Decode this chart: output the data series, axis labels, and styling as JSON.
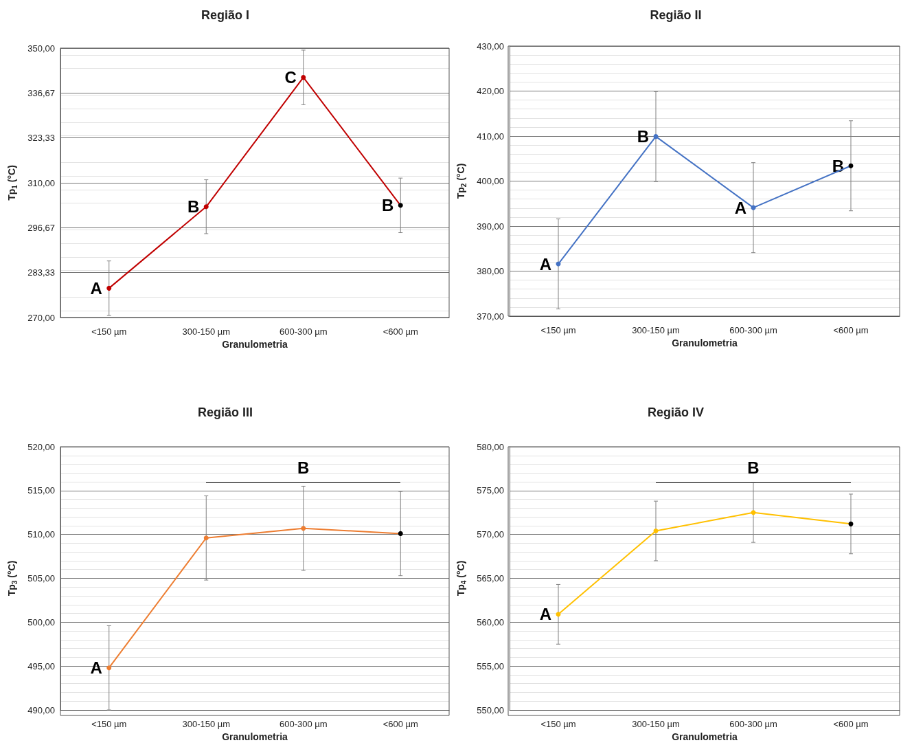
{
  "chart_data": [
    {
      "type": "line",
      "title": "Região I",
      "xlabel": "Granulometria",
      "ylabel": "Tp$_{1}$ (°C)",
      "categories": [
        "<150 µm",
        "300-150 µm",
        "600-300 µm",
        "<600 µm"
      ],
      "series": [
        {
          "color": "#c00000",
          "colors": [
            "#c00000",
            "#c00000",
            "#c00000",
            "#000000"
          ],
          "values": [
            278.7,
            302.9,
            341.3,
            303.3
          ],
          "errors": [
            8.1,
            8.0,
            8.1,
            8.1
          ]
        }
      ],
      "ylim": [
        270,
        350
      ],
      "yticks": [
        {
          "value": 270,
          "label": "270,00"
        },
        {
          "value": 283.33,
          "label": "283,33"
        },
        {
          "value": 296.67,
          "label": "296,67"
        },
        {
          "value": 310,
          "label": "310,00"
        },
        {
          "value": 323.33,
          "label": "323,33"
        },
        {
          "value": 336.67,
          "label": "336,67"
        },
        {
          "value": 350,
          "label": "350,00"
        }
      ],
      "grid": true,
      "marker": "circle",
      "line_style": "solid",
      "annotations": [
        {
          "text": "A",
          "x": "<150 µm",
          "y": 278.7
        },
        {
          "text": "B",
          "x": "300-150 µm",
          "y": 302.9
        },
        {
          "text": "C",
          "x": "600-300 µm",
          "y": 341.3
        },
        {
          "text": "B",
          "x": "<600 µm",
          "y": 303.3
        }
      ]
    },
    {
      "type": "line",
      "title": "Região II",
      "xlabel": "Granulometria",
      "ylabel": "Tp$_{2}$ (°C)",
      "categories": [
        "<150 µm",
        "300-150 µm",
        "600-300 µm",
        "<600 µm"
      ],
      "series": [
        {
          "color": "#4472c4",
          "colors": [
            "#4472c4",
            "#4472c4",
            "#4472c4",
            "#000000"
          ],
          "values": [
            381.6,
            409.9,
            394.1,
            403.4
          ],
          "errors": [
            10,
            10,
            10,
            10
          ]
        }
      ],
      "ylim": [
        370,
        430
      ],
      "yticks": [
        {
          "value": 370,
          "label": "370,00"
        },
        {
          "value": 380,
          "label": "380,00"
        },
        {
          "value": 390,
          "label": "390,00"
        },
        {
          "value": 400,
          "label": "400,00"
        },
        {
          "value": 410,
          "label": "410,00"
        },
        {
          "value": 420,
          "label": "420,00"
        },
        {
          "value": 430,
          "label": "430,00"
        }
      ],
      "grid": true,
      "marker": "circle",
      "line_style": "solid",
      "annotations": [
        {
          "text": "A",
          "x": "<150 µm",
          "y": 381.6
        },
        {
          "text": "B",
          "x": "300-150 µm",
          "y": 409.9
        },
        {
          "text": "A",
          "x": "600-300 µm",
          "y": 394.1
        },
        {
          "text": "B",
          "x": "<600 µm",
          "y": 403.4
        }
      ]
    },
    {
      "type": "line",
      "title": "Região III",
      "xlabel": "Granulometria",
      "ylabel": "Tp$_{3}$ (°C)",
      "categories": [
        "<150 µm",
        "300-150 µm",
        "600-300 µm",
        "<600 µm"
      ],
      "series": [
        {
          "color": "#ed7d31",
          "colors": [
            "#ed7d31",
            "#ed7d31",
            "#ed7d31",
            "#000000"
          ],
          "values": [
            494.8,
            509.6,
            510.7,
            510.1
          ],
          "errors": [
            4.8,
            4.8,
            4.8,
            4.8
          ]
        }
      ],
      "ylim": [
        490,
        520
      ],
      "yticks": [
        {
          "value": 490,
          "label": "490,00"
        },
        {
          "value": 495,
          "label": "495,00"
        },
        {
          "value": 500,
          "label": "500,00"
        },
        {
          "value": 505,
          "label": "505,00"
        },
        {
          "value": 510,
          "label": "510,00"
        },
        {
          "value": 515,
          "label": "515,00"
        },
        {
          "value": 520,
          "label": "520,00"
        }
      ],
      "grid": true,
      "marker": "circle",
      "line_style": "solid",
      "annotations": [
        {
          "text": "A",
          "x": "<150 µm",
          "y": 494.8
        },
        "B"
      ]
    },
    {
      "type": "line",
      "title": "Região IV",
      "xlabel": "Granulometria",
      "ylabel": "Tp$_{4}$ (°C)",
      "categories": [
        "<150 µm",
        "300-150 µm",
        "600-300 µm",
        "<600 µm"
      ],
      "series": [
        {
          "color": "#ffc000",
          "colors": [
            "#ffc000",
            "#ffc000",
            "#ffc000",
            "#000000"
          ],
          "values": [
            560.9,
            570.4,
            572.5,
            571.2
          ],
          "errors": [
            3.4,
            3.4,
            3.4,
            3.4
          ]
        }
      ],
      "ylim": [
        550,
        580
      ],
      "yticks": [
        {
          "value": 550,
          "label": "550,00"
        },
        {
          "value": 555,
          "label": "555,00"
        },
        {
          "value": 560,
          "label": "560,00"
        },
        {
          "value": 565,
          "label": "565,00"
        },
        {
          "value": 570,
          "label": "570,00"
        },
        {
          "value": 575,
          "label": "575,00"
        },
        {
          "value": 580,
          "label": "580,00"
        }
      ],
      "grid": true,
      "marker": "circle",
      "line_style": "solid",
      "annotations": [
        {
          "text": "A",
          "x": "<150 µm",
          "y": 560.9
        },
        "B"
      ]
    }
  ]
}
